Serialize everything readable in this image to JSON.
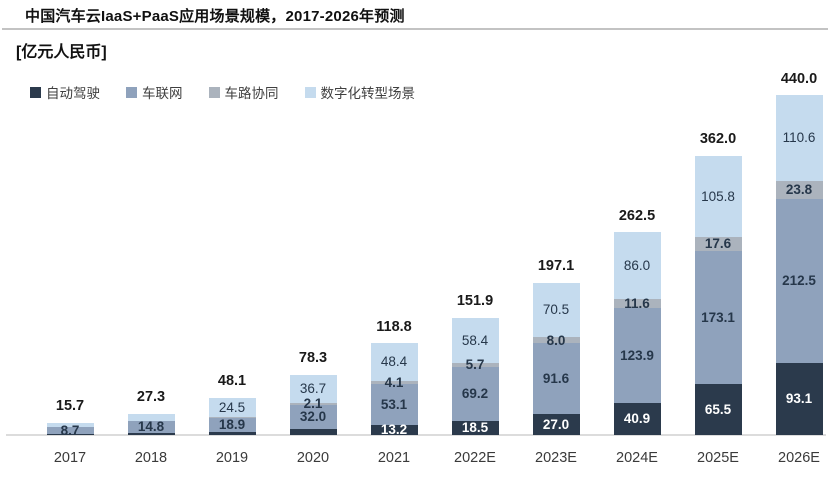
{
  "header": {
    "title": "中国汽车云IaaS+PaaS应用场景规模，2017-2026年预测",
    "unit_label": "[亿元人民币]"
  },
  "chart_data": {
    "type": "bar",
    "stacked": true,
    "title": "中国汽车云IaaS+PaaS应用场景规模，2017-2026年预测",
    "unit": "亿元人民币",
    "categories": [
      "2017",
      "2018",
      "2019",
      "2020",
      "2021",
      "2022E",
      "2023E",
      "2024E",
      "2025E",
      "2026E"
    ],
    "series": [
      {
        "name": "自动驾驶",
        "key": "autonomous-driving",
        "color": "#2b3a4c",
        "label_color": "#ffffff",
        "label_bold": true,
        "values": [
          1.5,
          2.8,
          3.5,
          7.5,
          13.2,
          18.5,
          27.0,
          40.9,
          65.5,
          93.1
        ],
        "labels": [
          "",
          "",
          "",
          "",
          "13.2",
          "18.5",
          "27.0",
          "40.9",
          "65.5",
          "93.1"
        ]
      },
      {
        "name": "车联网",
        "key": "connected-car",
        "color": "#8fa2bc",
        "label_color": "#26374a",
        "label_bold": true,
        "values": [
          8.7,
          14.8,
          18.9,
          32.0,
          53.1,
          69.2,
          91.6,
          123.9,
          173.1,
          212.5
        ],
        "labels": [
          "8.7",
          "14.8",
          "18.9",
          "32.0",
          "53.1",
          "69.2",
          "91.6",
          "123.9",
          "173.1",
          "212.5"
        ]
      },
      {
        "name": "车路协同",
        "key": "vehicle-road-coordination",
        "color": "#abb3bd",
        "label_color": "#26374a",
        "label_bold": true,
        "values": [
          0.3,
          0.6,
          1.2,
          2.1,
          4.1,
          5.7,
          8.0,
          11.6,
          17.6,
          23.8
        ],
        "labels": [
          "",
          "",
          "",
          "2.1",
          "4.1",
          "5.7",
          "8.0",
          "11.6",
          "17.6",
          "23.8"
        ]
      },
      {
        "name": "数字化转型场景",
        "key": "digital-transformation-scenarios",
        "color": "#c5dbee",
        "label_color": "#26374a",
        "label_bold": false,
        "values": [
          5.2,
          9.1,
          24.5,
          36.7,
          48.4,
          58.4,
          70.5,
          86.0,
          105.8,
          110.6
        ],
        "labels": [
          "",
          "",
          "24.5",
          "36.7",
          "48.4",
          "58.4",
          "70.5",
          "86.0",
          "105.8",
          "110.6"
        ]
      }
    ],
    "totals": [
      15.7,
      27.3,
      48.1,
      78.3,
      118.8,
      151.9,
      197.1,
      262.5,
      362.0,
      440.0
    ],
    "total_labels": [
      "15.7",
      "27.3",
      "48.1",
      "78.3",
      "118.8",
      "151.9",
      "197.1",
      "262.5",
      "362.0",
      "440.0"
    ],
    "layout": {
      "legend_position": "top-left",
      "gridlines": false,
      "value_axis_visible": false,
      "baseline_color": "#dcdcdc",
      "value_labels": "inside-segments",
      "total_labels": "above-bars"
    }
  }
}
